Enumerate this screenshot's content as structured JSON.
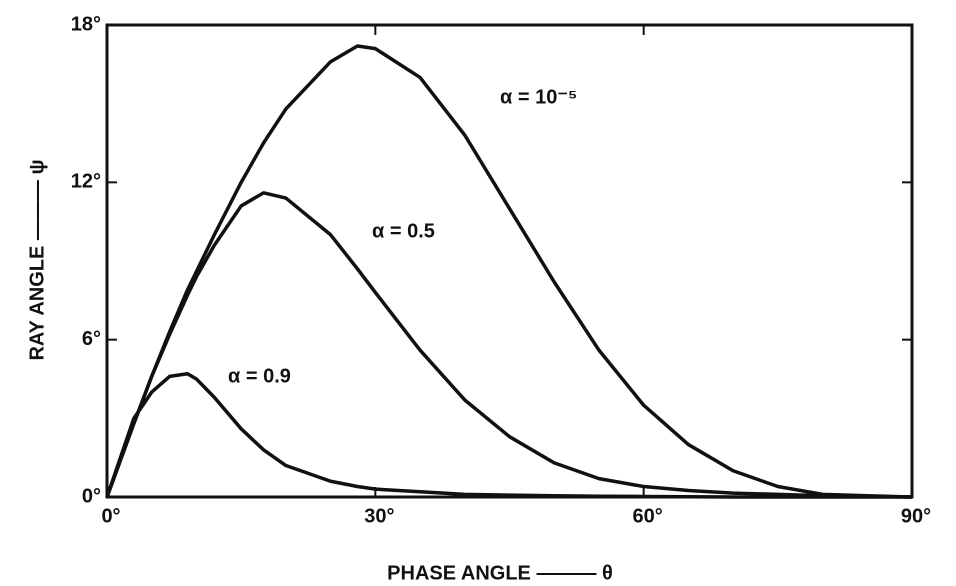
{
  "chart_data": {
    "type": "line",
    "xlabel": "PHASE ANGLE ——— θ",
    "ylabel": "RAY ANGLE ——— ψ",
    "x": [
      0,
      3,
      5,
      7,
      9,
      10,
      12,
      15,
      17.5,
      20,
      25,
      28,
      30,
      35,
      40,
      45,
      50,
      55,
      60,
      65,
      70,
      75,
      80,
      85,
      90
    ],
    "series": [
      {
        "name": "α = 10⁻⁵",
        "color": "#111111",
        "values": [
          0,
          2.8,
          4.6,
          6.3,
          7.9,
          8.6,
          10.0,
          12.0,
          13.5,
          14.8,
          16.6,
          17.2,
          17.1,
          16.0,
          13.8,
          11.0,
          8.2,
          5.6,
          3.5,
          2.0,
          1.0,
          0.4,
          0.1,
          0.05,
          0
        ]
      },
      {
        "name": "α = 0.5",
        "color": "#111111",
        "values": [
          0,
          2.8,
          4.6,
          6.2,
          7.7,
          8.4,
          9.6,
          11.1,
          11.6,
          11.4,
          10.0,
          8.7,
          7.8,
          5.6,
          3.7,
          2.3,
          1.3,
          0.7,
          0.4,
          0.25,
          0.15,
          0.1,
          0.05,
          0.02,
          0
        ]
      },
      {
        "name": "α = 0.9",
        "color": "#111111",
        "values": [
          0,
          3.0,
          4.0,
          4.6,
          4.7,
          4.5,
          3.8,
          2.6,
          1.8,
          1.2,
          0.6,
          0.4,
          0.3,
          0.2,
          0.1,
          0.07,
          0.05,
          0.03,
          0.02,
          0.01,
          0,
          0,
          0,
          0,
          0
        ]
      }
    ],
    "xlim": [
      0,
      90
    ],
    "ylim": [
      0,
      18
    ],
    "xticks": [
      {
        "value": 0,
        "label": "0°"
      },
      {
        "value": 30,
        "label": "30°"
      },
      {
        "value": 60,
        "label": "60°"
      },
      {
        "value": 90,
        "label": "90°"
      }
    ],
    "yticks": [
      {
        "value": 0,
        "label": "0°"
      },
      {
        "value": 6,
        "label": "6°"
      },
      {
        "value": 12,
        "label": "12°"
      },
      {
        "value": 18,
        "label": "18°"
      }
    ],
    "grid": false
  }
}
